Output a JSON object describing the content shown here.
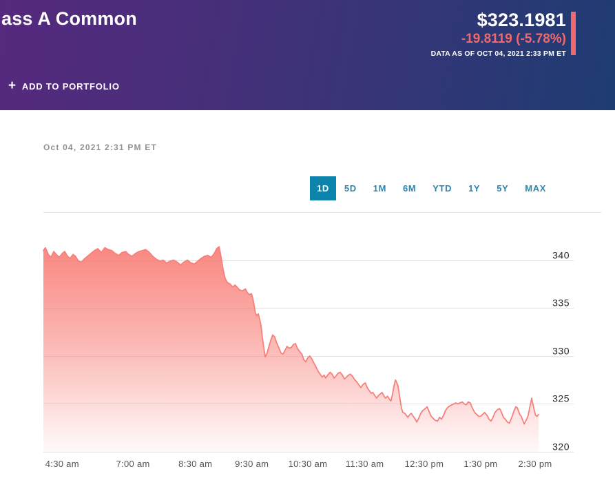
{
  "header": {
    "title": "ass A Common",
    "price": "$323.1981",
    "change": "-19.8119 (-5.78%)",
    "data_as_of": "DATA AS OF OCT 04, 2021 2:33 PM ET",
    "plus_icon": "+",
    "add_to_portfolio": "ADD TO PORTFOLIO",
    "colors": {
      "gradient_left": "#56297e",
      "gradient_right": "#1e3c72",
      "negative_red": "#f2696d"
    }
  },
  "chart_header": {
    "timestamp": "Oct 04, 2021 2:31 PM ET"
  },
  "range_tabs": {
    "items": [
      {
        "label": "1D",
        "selected": true
      },
      {
        "label": "5D",
        "selected": false
      },
      {
        "label": "1M",
        "selected": false
      },
      {
        "label": "6M",
        "selected": false
      },
      {
        "label": "YTD",
        "selected": false
      },
      {
        "label": "1Y",
        "selected": false
      },
      {
        "label": "5Y",
        "selected": false
      },
      {
        "label": "MAX",
        "selected": false
      }
    ],
    "selected_bg": "#0b83aa",
    "label_color": "#2c86b0"
  },
  "chart_data": {
    "type": "area",
    "title": "1-day intraday price chart",
    "legend": "none",
    "grid": "horizontal",
    "line_color": "#f6807b",
    "fill_color": "#f8766f",
    "grid_color": "#e3e3e3",
    "y_axis": {
      "min": 320,
      "max": 343,
      "ticks": [
        340,
        335,
        330,
        325,
        320
      ],
      "side": "right"
    },
    "x_axis": {
      "ticks": [
        {
          "label": "4:30 am",
          "x": 0.038
        },
        {
          "label": "7:00 am",
          "x": 0.181
        },
        {
          "label": "8:30 am",
          "x": 0.307
        },
        {
          "label": "9:30 am",
          "x": 0.421
        },
        {
          "label": "10:30 am",
          "x": 0.534
        },
        {
          "label": "11:30 am",
          "x": 0.649
        },
        {
          "label": "12:30 pm",
          "x": 0.769
        },
        {
          "label": "1:30 pm",
          "x": 0.883
        },
        {
          "label": "2:30 pm",
          "x": 0.993
        }
      ]
    },
    "points": [
      [
        0.0,
        341.0
      ],
      [
        0.004,
        341.3
      ],
      [
        0.01,
        340.6
      ],
      [
        0.015,
        340.3
      ],
      [
        0.021,
        340.9
      ],
      [
        0.026,
        340.6
      ],
      [
        0.032,
        340.3
      ],
      [
        0.038,
        340.7
      ],
      [
        0.043,
        340.9
      ],
      [
        0.049,
        340.4
      ],
      [
        0.054,
        340.2
      ],
      [
        0.06,
        340.6
      ],
      [
        0.065,
        340.4
      ],
      [
        0.071,
        339.9
      ],
      [
        0.077,
        339.8
      ],
      [
        0.082,
        340.1
      ],
      [
        0.089,
        340.4
      ],
      [
        0.096,
        340.7
      ],
      [
        0.103,
        341.0
      ],
      [
        0.11,
        341.2
      ],
      [
        0.117,
        340.8
      ],
      [
        0.124,
        341.3
      ],
      [
        0.131,
        341.1
      ],
      [
        0.138,
        341.0
      ],
      [
        0.145,
        340.7
      ],
      [
        0.152,
        340.5
      ],
      [
        0.159,
        340.8
      ],
      [
        0.166,
        340.9
      ],
      [
        0.172,
        340.6
      ],
      [
        0.179,
        340.4
      ],
      [
        0.186,
        340.7
      ],
      [
        0.193,
        340.9
      ],
      [
        0.2,
        341.0
      ],
      [
        0.207,
        341.1
      ],
      [
        0.214,
        340.8
      ],
      [
        0.221,
        340.4
      ],
      [
        0.228,
        340.1
      ],
      [
        0.235,
        339.9
      ],
      [
        0.242,
        340.0
      ],
      [
        0.249,
        339.7
      ],
      [
        0.256,
        339.9
      ],
      [
        0.263,
        340.0
      ],
      [
        0.27,
        339.8
      ],
      [
        0.277,
        339.5
      ],
      [
        0.284,
        339.8
      ],
      [
        0.291,
        340.0
      ],
      [
        0.298,
        339.7
      ],
      [
        0.305,
        339.6
      ],
      [
        0.312,
        339.9
      ],
      [
        0.319,
        340.2
      ],
      [
        0.325,
        340.4
      ],
      [
        0.332,
        340.5
      ],
      [
        0.339,
        340.3
      ],
      [
        0.345,
        340.7
      ],
      [
        0.35,
        341.2
      ],
      [
        0.355,
        341.4
      ],
      [
        0.359,
        340.3
      ],
      [
        0.363,
        339.0
      ],
      [
        0.367,
        338.1
      ],
      [
        0.371,
        337.7
      ],
      [
        0.377,
        337.5
      ],
      [
        0.382,
        337.2
      ],
      [
        0.387,
        337.4
      ],
      [
        0.391,
        337.2
      ],
      [
        0.396,
        336.9
      ],
      [
        0.402,
        336.8
      ],
      [
        0.408,
        337.0
      ],
      [
        0.412,
        336.6
      ],
      [
        0.416,
        336.4
      ],
      [
        0.42,
        336.5
      ],
      [
        0.423,
        336.0
      ],
      [
        0.426,
        335.2
      ],
      [
        0.428,
        334.5
      ],
      [
        0.431,
        334.2
      ],
      [
        0.434,
        334.4
      ],
      [
        0.437,
        333.8
      ],
      [
        0.44,
        333.0
      ],
      [
        0.442,
        332.0
      ],
      [
        0.445,
        330.9
      ],
      [
        0.448,
        329.9
      ],
      [
        0.451,
        330.2
      ],
      [
        0.455,
        330.9
      ],
      [
        0.459,
        331.6
      ],
      [
        0.463,
        332.2
      ],
      [
        0.467,
        332.0
      ],
      [
        0.471,
        331.4
      ],
      [
        0.476,
        330.8
      ],
      [
        0.48,
        330.3
      ],
      [
        0.484,
        330.2
      ],
      [
        0.488,
        330.6
      ],
      [
        0.492,
        331.0
      ],
      [
        0.497,
        330.8
      ],
      [
        0.501,
        330.9
      ],
      [
        0.505,
        331.2
      ],
      [
        0.509,
        331.3
      ],
      [
        0.513,
        330.8
      ],
      [
        0.517,
        330.5
      ],
      [
        0.522,
        330.2
      ],
      [
        0.526,
        329.6
      ],
      [
        0.53,
        329.4
      ],
      [
        0.534,
        329.8
      ],
      [
        0.538,
        330.0
      ],
      [
        0.542,
        329.7
      ],
      [
        0.547,
        329.2
      ],
      [
        0.551,
        328.8
      ],
      [
        0.555,
        328.4
      ],
      [
        0.559,
        328.1
      ],
      [
        0.563,
        327.8
      ],
      [
        0.567,
        328.0
      ],
      [
        0.57,
        327.7
      ],
      [
        0.574,
        328.0
      ],
      [
        0.579,
        328.3
      ],
      [
        0.583,
        328.1
      ],
      [
        0.587,
        327.7
      ],
      [
        0.591,
        327.9
      ],
      [
        0.595,
        328.2
      ],
      [
        0.599,
        328.3
      ],
      [
        0.604,
        328.0
      ],
      [
        0.608,
        327.6
      ],
      [
        0.612,
        327.8
      ],
      [
        0.616,
        328.0
      ],
      [
        0.62,
        328.1
      ],
      [
        0.624,
        327.9
      ],
      [
        0.629,
        327.5
      ],
      [
        0.633,
        327.3
      ],
      [
        0.637,
        327.0
      ],
      [
        0.641,
        326.7
      ],
      [
        0.645,
        327.0
      ],
      [
        0.65,
        327.2
      ],
      [
        0.654,
        326.7
      ],
      [
        0.658,
        326.4
      ],
      [
        0.662,
        326.1
      ],
      [
        0.665,
        326.2
      ],
      [
        0.669,
        325.9
      ],
      [
        0.673,
        325.6
      ],
      [
        0.677,
        325.9
      ],
      [
        0.682,
        326.1
      ],
      [
        0.684,
        326.2
      ],
      [
        0.688,
        325.8
      ],
      [
        0.691,
        325.6
      ],
      [
        0.695,
        325.8
      ],
      [
        0.7,
        325.4
      ],
      [
        0.702,
        325.3
      ],
      [
        0.705,
        326.0
      ],
      [
        0.708,
        326.9
      ],
      [
        0.711,
        327.5
      ],
      [
        0.713,
        327.3
      ],
      [
        0.716,
        326.9
      ],
      [
        0.719,
        325.9
      ],
      [
        0.723,
        324.6
      ],
      [
        0.726,
        324.1
      ],
      [
        0.73,
        324.0
      ],
      [
        0.733,
        323.8
      ],
      [
        0.736,
        323.6
      ],
      [
        0.74,
        323.9
      ],
      [
        0.743,
        324.0
      ],
      [
        0.747,
        323.7
      ],
      [
        0.751,
        323.4
      ],
      [
        0.754,
        323.1
      ],
      [
        0.758,
        323.5
      ],
      [
        0.762,
        324.0
      ],
      [
        0.766,
        324.3
      ],
      [
        0.771,
        324.5
      ],
      [
        0.775,
        324.7
      ],
      [
        0.779,
        324.2
      ],
      [
        0.783,
        323.7
      ],
      [
        0.787,
        323.5
      ],
      [
        0.791,
        323.3
      ],
      [
        0.796,
        323.2
      ],
      [
        0.8,
        323.6
      ],
      [
        0.804,
        323.4
      ],
      [
        0.808,
        323.8
      ],
      [
        0.812,
        324.3
      ],
      [
        0.816,
        324.6
      ],
      [
        0.821,
        324.8
      ],
      [
        0.825,
        324.9
      ],
      [
        0.829,
        325.0
      ],
      [
        0.833,
        325.1
      ],
      [
        0.837,
        325.0
      ],
      [
        0.841,
        325.1
      ],
      [
        0.846,
        325.2
      ],
      [
        0.85,
        325.0
      ],
      [
        0.854,
        324.9
      ],
      [
        0.858,
        325.2
      ],
      [
        0.862,
        325.1
      ],
      [
        0.866,
        324.6
      ],
      [
        0.871,
        324.1
      ],
      [
        0.875,
        323.9
      ],
      [
        0.879,
        323.7
      ],
      [
        0.883,
        323.7
      ],
      [
        0.887,
        323.9
      ],
      [
        0.891,
        324.1
      ],
      [
        0.896,
        323.8
      ],
      [
        0.9,
        323.4
      ],
      [
        0.904,
        323.2
      ],
      [
        0.908,
        323.6
      ],
      [
        0.912,
        324.1
      ],
      [
        0.917,
        324.4
      ],
      [
        0.921,
        324.5
      ],
      [
        0.923,
        324.4
      ],
      [
        0.926,
        324.0
      ],
      [
        0.929,
        323.6
      ],
      [
        0.933,
        323.4
      ],
      [
        0.937,
        323.1
      ],
      [
        0.941,
        323.0
      ],
      [
        0.946,
        323.6
      ],
      [
        0.95,
        324.2
      ],
      [
        0.954,
        324.7
      ],
      [
        0.957,
        324.6
      ],
      [
        0.96,
        324.2
      ],
      [
        0.962,
        323.9
      ],
      [
        0.965,
        323.7
      ],
      [
        0.968,
        323.3
      ],
      [
        0.971,
        322.9
      ],
      [
        0.974,
        323.2
      ],
      [
        0.976,
        323.4
      ],
      [
        0.979,
        323.8
      ],
      [
        0.982,
        324.6
      ],
      [
        0.985,
        325.3
      ],
      [
        0.986,
        325.6
      ],
      [
        0.989,
        324.9
      ],
      [
        0.992,
        324.2
      ],
      [
        0.994,
        323.8
      ],
      [
        0.997,
        323.7
      ],
      [
        1.0,
        323.9
      ]
    ]
  }
}
